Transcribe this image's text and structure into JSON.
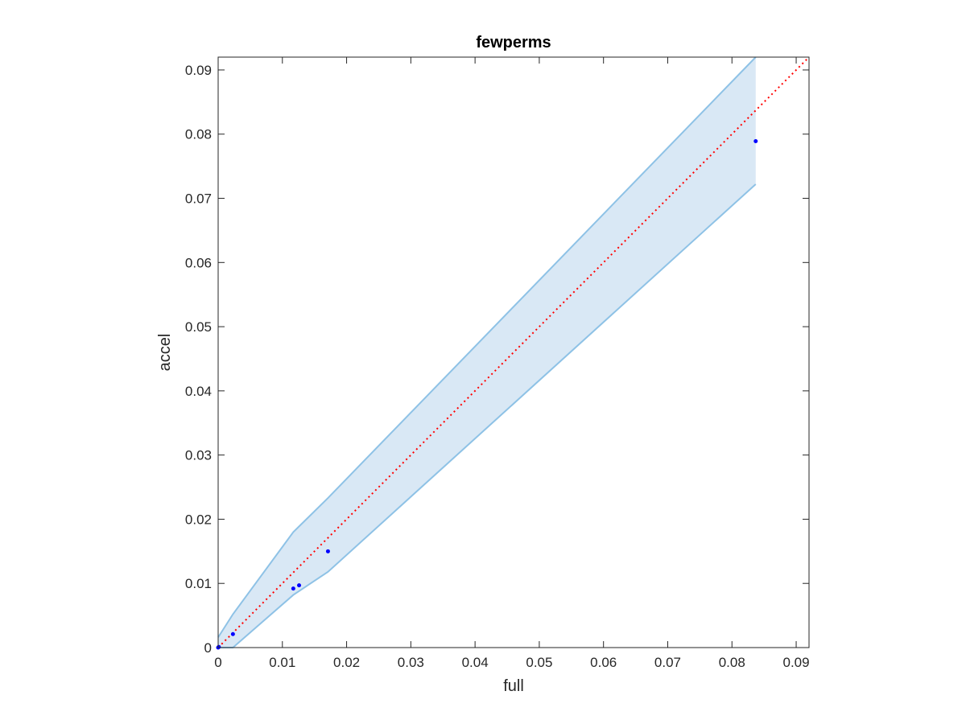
{
  "chart_data": {
    "type": "scatter",
    "title": "fewperms",
    "xlabel": "full",
    "ylabel": "accel",
    "xlim": [
      0,
      0.092
    ],
    "ylim": [
      0,
      0.092
    ],
    "x_ticks": [
      0,
      0.01,
      0.02,
      0.03,
      0.04,
      0.05,
      0.06,
      0.07,
      0.08,
      0.09
    ],
    "y_ticks": [
      0,
      0.01,
      0.02,
      0.03,
      0.04,
      0.05,
      0.06,
      0.07,
      0.08,
      0.09
    ],
    "x_tick_labels": [
      "0",
      "0.01",
      "0.02",
      "0.03",
      "0.04",
      "0.05",
      "0.06",
      "0.07",
      "0.08",
      "0.09"
    ],
    "y_tick_labels": [
      "0",
      "0.01",
      "0.02",
      "0.03",
      "0.04",
      "0.05",
      "0.06",
      "0.07",
      "0.08",
      "0.09"
    ],
    "grid": false,
    "points": {
      "x": [
        0,
        0.0001,
        0.0023,
        0.0117,
        0.0126,
        0.0171,
        0.0837
      ],
      "y": [
        0,
        0.0001,
        0.0021,
        0.0092,
        0.0097,
        0.015,
        0.0789
      ],
      "color": "#0000ff"
    },
    "band": {
      "x": [
        0,
        0.0023,
        0.0117,
        0.0171,
        0.0837
      ],
      "upper": [
        0.0016,
        0.0052,
        0.018,
        0.0233,
        0.092
      ],
      "lower": [
        0,
        0,
        0.0082,
        0.0118,
        0.0722
      ],
      "fill_color": "#d9e8f5",
      "edge_color": "#8ec2e6"
    },
    "reference_line": {
      "x": [
        0,
        0.092
      ],
      "y": [
        0,
        0.092
      ],
      "style": "dotted",
      "color": "#ff0000"
    }
  }
}
